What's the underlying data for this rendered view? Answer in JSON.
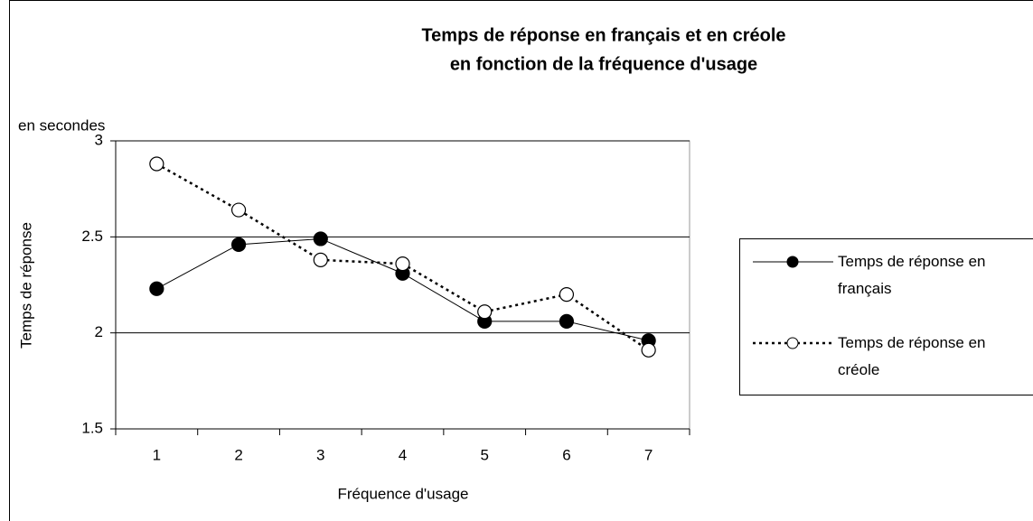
{
  "chart_data": {
    "type": "line",
    "title": "Temps de réponse en français et en créole",
    "subtitle": "en fonction de la fréquence d'usage",
    "units_label": "en secondes",
    "x_label": "Fréquence d'usage",
    "y_label": "Temps de réponse",
    "categories": [
      "1",
      "2",
      "3",
      "4",
      "5",
      "6",
      "7"
    ],
    "series": [
      {
        "name": "Temps de réponse en français",
        "color": "#000000",
        "values": [
          2.23,
          2.46,
          2.49,
          2.31,
          2.06,
          2.06,
          1.96
        ]
      },
      {
        "name": "Temps de réponse en créole",
        "color": "#000000",
        "values": [
          2.88,
          2.64,
          2.38,
          2.36,
          2.11,
          2.2,
          1.91
        ]
      }
    ],
    "ylim": [
      1.5,
      3
    ],
    "yticks": [
      1.5,
      2,
      2.5,
      3
    ],
    "grid": true,
    "legend": "right"
  }
}
